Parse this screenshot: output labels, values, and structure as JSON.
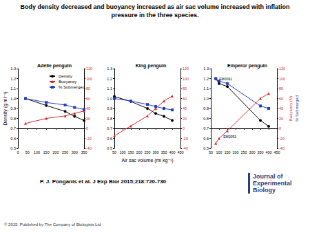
{
  "title": "Body density decreased and buoyancy increased as air sac volume increased with inflation pressure in the three species.",
  "citation": "P. J. Ponganis et al. J Exp Biol 2015;218:720-730",
  "journal": "Journal of Experimental Biology",
  "copyright": "© 2015. Published by The Company of Biologists Ltd",
  "chart_data": [
    {
      "type": "line",
      "title": "Adélie penguin",
      "y_label": "Density (g ml⁻¹)",
      "legend": "upper left",
      "x": [
        40,
        150,
        250,
        300,
        350
      ],
      "xlim": [
        0,
        350
      ],
      "xticks": [
        0,
        50,
        100,
        150,
        200,
        250,
        300,
        350
      ],
      "ylim": [
        0.5,
        1.3
      ],
      "yticks": [
        0.5,
        0.6,
        0.7,
        0.8,
        0.9,
        {
          "value": 1,
          "label": "1.0"
        },
        1.1,
        1.2,
        1.3
      ],
      "y2lim": [
        -40,
        120
      ],
      "y2ticks": [
        -40,
        -20,
        0,
        20,
        40,
        60,
        80,
        100,
        120
      ],
      "grid": false,
      "series": [
        {
          "name": "Density",
          "color": "#000000",
          "marker": "circle",
          "values": [
            1.0,
            0.93,
            0.87,
            0.82,
            0.78
          ]
        },
        {
          "name": "Buoyancy",
          "color": "#d62a2a",
          "marker": "triangle",
          "axis": "y2",
          "values": [
            10,
            20,
            25,
            30,
            35
          ]
        },
        {
          "name": "% Submerged",
          "color": "#1f3fbf",
          "marker": "square",
          "axis": "y2",
          "values": [
            60,
            52,
            47,
            42,
            38
          ]
        }
      ]
    },
    {
      "type": "line",
      "title": "King penguin",
      "x_label": "Air sac volume (ml kg⁻¹)",
      "x": [
        50,
        150,
        250,
        300,
        350,
        400
      ],
      "xlim": [
        50,
        450
      ],
      "xticks": [
        50,
        100,
        150,
        200,
        250,
        300,
        350,
        400,
        450
      ],
      "ylim": [
        0.5,
        1.3
      ],
      "yticks": [
        0.5,
        0.6,
        0.7,
        0.8,
        0.9,
        {
          "value": 1,
          "label": "1.0"
        },
        1.1,
        1.2,
        1.3
      ],
      "y2lim": [
        -40,
        120
      ],
      "y2ticks": [
        -40,
        -20,
        0,
        20,
        40,
        60,
        80,
        100,
        120
      ],
      "grid": false,
      "series": [
        {
          "name": "Density",
          "color": "#000000",
          "marker": "circle",
          "values": [
            1.02,
            0.97,
            0.9,
            0.85,
            0.82,
            0.78
          ]
        },
        {
          "name": "Buoyancy",
          "color": "#d62a2a",
          "marker": "triangle",
          "axis": "y2",
          "values": [
            -15,
            5,
            25,
            40,
            55,
            65
          ]
        },
        {
          "name": "% Submerged",
          "color": "#1f3fbf",
          "marker": "square",
          "axis": "y2",
          "values": [
            60,
            55,
            48,
            44,
            40,
            37
          ]
        }
      ]
    },
    {
      "type": "line",
      "title": "Emperor penguin",
      "y2_labels": [
        "Buoyancy (N)",
        "% Submerged"
      ],
      "x": [
        80,
        100,
        150,
        350,
        400
      ],
      "xlim": [
        50,
        450
      ],
      "xticks": [
        50,
        100,
        150,
        200,
        250,
        300,
        350,
        400,
        450
      ],
      "ylim": [
        0.5,
        1.3
      ],
      "yticks": [
        0.5,
        0.6,
        0.7,
        0.8,
        0.9,
        {
          "value": 1,
          "label": "1.0"
        },
        1.1,
        1.2,
        1.3
      ],
      "y2lim": [
        -40,
        120
      ],
      "y2ticks": [
        -40,
        -20,
        0,
        20,
        40,
        60,
        80,
        100,
        120
      ],
      "grid": false,
      "annotations": [
        {
          "text": "EM0091",
          "x": 80,
          "y": 1.2
        },
        {
          "text": "EM0093",
          "x": 105,
          "y": 0.62
        }
      ],
      "series": [
        {
          "name": "Density",
          "color": "#000000",
          "marker": "circle",
          "values": [
            1.2,
            1.15,
            1.12,
            0.78,
            0.72
          ]
        },
        {
          "name": "Buoyancy",
          "color": "#d62a2a",
          "marker": "triangle",
          "axis": "y2",
          "values": [
            -30,
            -20,
            -5,
            60,
            70
          ]
        },
        {
          "name": "% Submerged",
          "color": "#1f3fbf",
          "marker": "square",
          "axis": "y2",
          "values": [
            100,
            95,
            90,
            45,
            40
          ]
        }
      ]
    }
  ]
}
